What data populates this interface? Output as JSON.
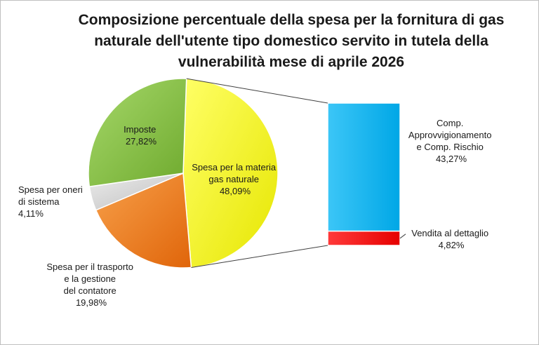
{
  "chart_data": {
    "type": "pie",
    "title_lines": [
      "Composizione percentuale della spesa per la fornitura di gas",
      "naturale dell'utente tipo domestico servito in tutela della",
      "vulnerabilità mese di aprile 2026"
    ],
    "slices": [
      {
        "label_lines": [
          "Spesa per la materia",
          "gas naturale"
        ],
        "value_text": "48,09%",
        "value": 48.09,
        "color": "#ffff00"
      },
      {
        "label_lines": [
          "Spesa per il trasporto",
          "e la gestione",
          "del contatore"
        ],
        "value_text": "19,98%",
        "value": 19.98,
        "color": "#f07814"
      },
      {
        "label_lines": [
          "Spesa per oneri",
          "di sistema"
        ],
        "value_text": "4,11%",
        "value": 4.11,
        "color": "#d6d6d6"
      },
      {
        "label_lines": [
          "Imposte"
        ],
        "value_text": "27,82%",
        "value": 27.82,
        "color": "#8cc63f"
      }
    ],
    "breakdown_of": "Spesa per la materia gas naturale",
    "breakdown": [
      {
        "label_lines": [
          "Comp.",
          "Approvvigionamento",
          "e  Comp. Rischio"
        ],
        "value_text": "43,27%",
        "value": 43.27,
        "color": "#00b0f0"
      },
      {
        "label_lines": [
          "Vendita al dettaglio"
        ],
        "value_text": "4,82%",
        "value": 4.82,
        "color": "#ff0000"
      }
    ]
  }
}
